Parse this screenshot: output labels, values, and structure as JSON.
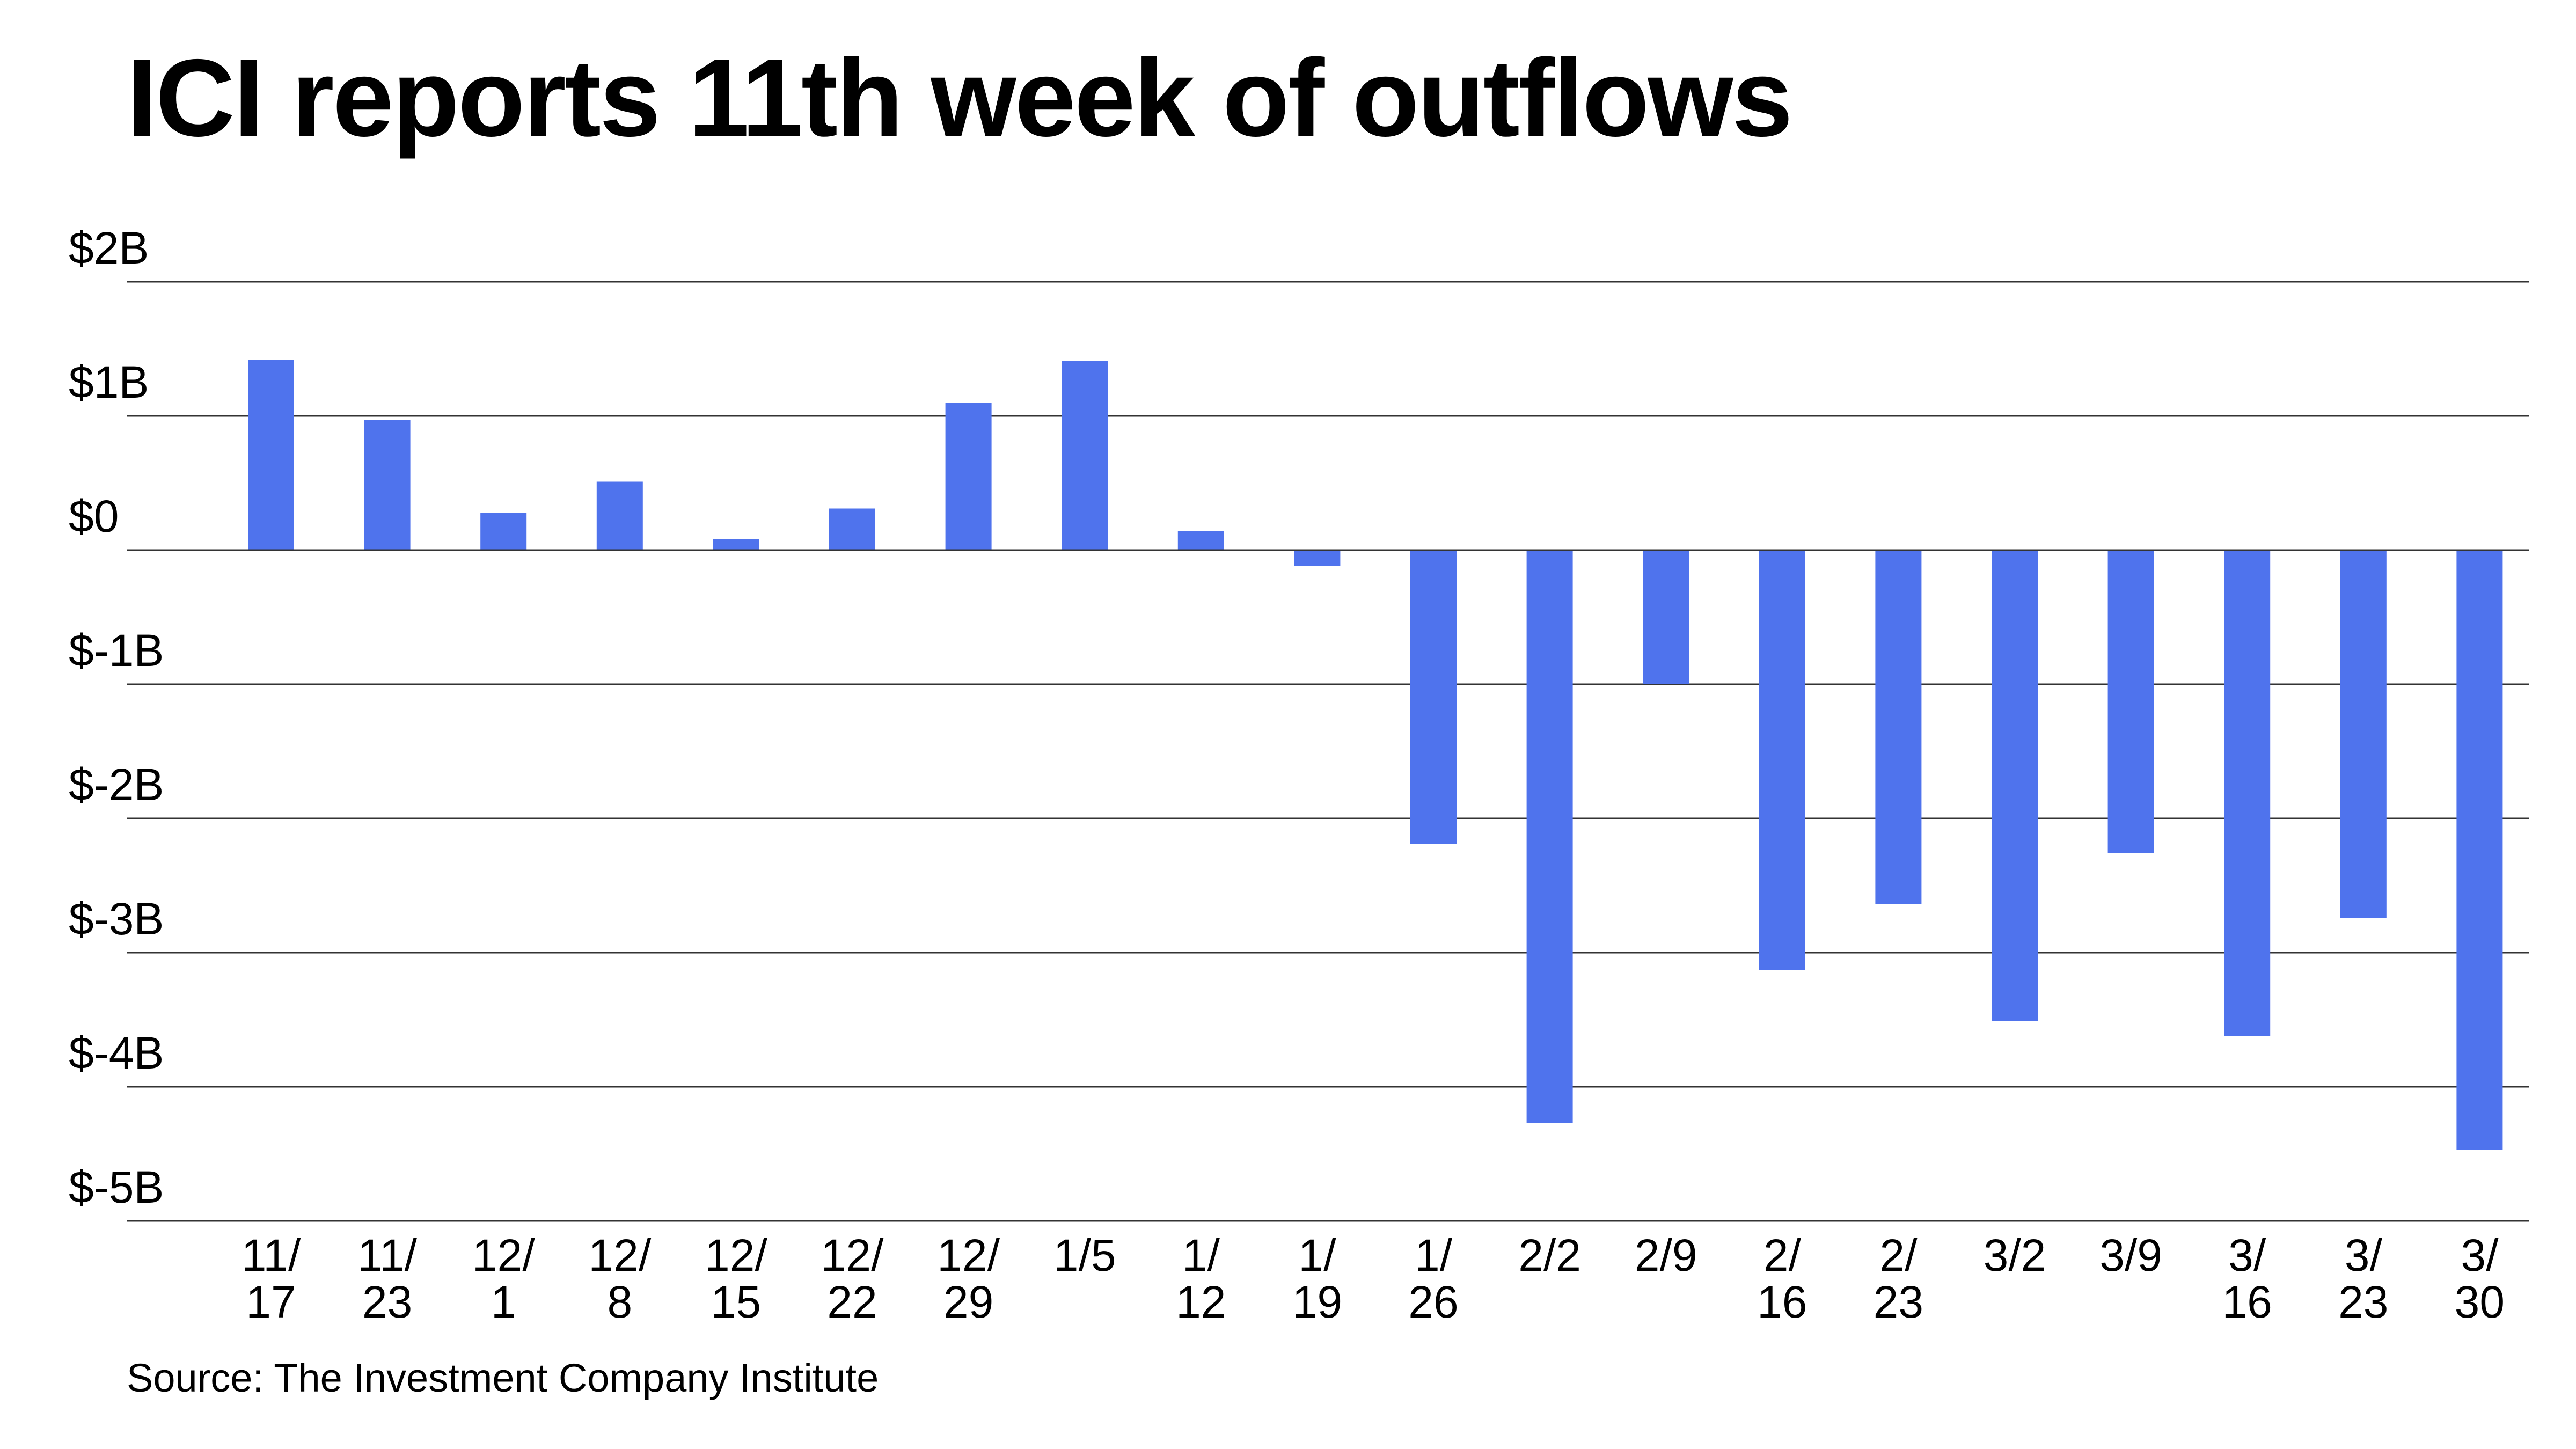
{
  "chart_data": {
    "type": "bar",
    "title": "ICI reports 11th week of outflows",
    "source": "Source: The Investment Company Institute",
    "categories": [
      "11/17",
      "11/23",
      "12/1",
      "12/8",
      "12/15",
      "12/22",
      "12/29",
      "1/5",
      "1/12",
      "1/19",
      "1/26",
      "2/2",
      "2/9",
      "2/16",
      "2/23",
      "3/2",
      "3/9",
      "3/16",
      "3/23",
      "3/30"
    ],
    "x_tick_labels": [
      [
        "11/",
        "17"
      ],
      [
        "11/",
        "23"
      ],
      [
        "12/",
        "1"
      ],
      [
        "12/",
        "8"
      ],
      [
        "12/",
        "15"
      ],
      [
        "12/",
        "22"
      ],
      [
        "12/",
        "29"
      ],
      [
        "1/5"
      ],
      [
        "1/",
        "12"
      ],
      [
        "1/",
        "19"
      ],
      [
        "1/",
        "26"
      ],
      [
        "2/2"
      ],
      [
        "2/9"
      ],
      [
        "2/",
        "16"
      ],
      [
        "2/",
        "23"
      ],
      [
        "3/2"
      ],
      [
        "3/9"
      ],
      [
        "3/",
        "16"
      ],
      [
        "3/",
        "23"
      ],
      [
        "3/",
        "30"
      ]
    ],
    "values": [
      1.42,
      0.97,
      0.28,
      0.51,
      0.08,
      0.31,
      1.1,
      1.41,
      0.14,
      -0.12,
      -2.19,
      -4.27,
      -1.0,
      -3.13,
      -2.64,
      -3.51,
      -2.26,
      -3.62,
      -2.74,
      -4.47
    ],
    "y_ticks": [
      2,
      1,
      0,
      -1,
      -2,
      -3,
      -4,
      -5
    ],
    "y_tick_labels": [
      "$2B",
      "$1B",
      "$0",
      "$-1B",
      "$-2B",
      "$-3B",
      "$-4B",
      "$-5B"
    ],
    "ylim": [
      -5,
      2
    ],
    "unit": "billions of dollars",
    "grid": true,
    "bar_color": "#4f73ed",
    "xlabel": "",
    "ylabel": ""
  }
}
